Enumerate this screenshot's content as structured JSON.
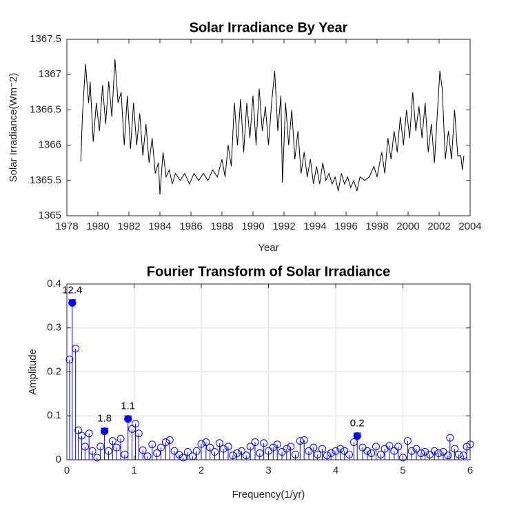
{
  "chart_data": [
    {
      "type": "line",
      "title": "Solar Irradiance By Year",
      "xlabel": "Year",
      "ylabel": "Solar Irradiance(Wm⁻2)",
      "color": "#000000",
      "grid": false,
      "xlim": [
        1978,
        2004
      ],
      "xticks": [
        1978,
        1980,
        1982,
        1984,
        1986,
        1988,
        1990,
        1992,
        1994,
        1996,
        1998,
        2000,
        2002,
        2004
      ],
      "ylim": [
        1365,
        1367.5
      ],
      "yticks": [
        1365,
        1365.5,
        1366,
        1366.5,
        1367,
        1367.5
      ],
      "x": [
        1978.9,
        1979.0,
        1979.2,
        1979.4,
        1979.5,
        1979.7,
        1979.9,
        1980.1,
        1980.3,
        1980.5,
        1980.7,
        1980.9,
        1981.1,
        1981.3,
        1981.5,
        1981.7,
        1981.9,
        1982.1,
        1982.3,
        1982.5,
        1982.7,
        1982.9,
        1983.1,
        1983.3,
        1983.5,
        1983.7,
        1983.9,
        1984.0,
        1984.2,
        1984.4,
        1984.6,
        1984.8,
        1985.0,
        1985.3,
        1985.6,
        1985.9,
        1986.2,
        1986.5,
        1986.8,
        1987.1,
        1987.4,
        1987.7,
        1988.0,
        1988.2,
        1988.4,
        1988.6,
        1988.8,
        1989.0,
        1989.2,
        1989.4,
        1989.6,
        1989.8,
        1990.0,
        1990.2,
        1990.4,
        1990.6,
        1990.8,
        1991.0,
        1991.2,
        1991.4,
        1991.6,
        1991.8,
        1991.9,
        1992.1,
        1992.3,
        1992.5,
        1992.7,
        1992.9,
        1993.1,
        1993.3,
        1993.5,
        1993.7,
        1993.9,
        1994.1,
        1994.3,
        1994.5,
        1994.7,
        1994.9,
        1995.1,
        1995.3,
        1995.5,
        1995.7,
        1995.9,
        1996.1,
        1996.3,
        1996.5,
        1996.7,
        1996.9,
        1997.2,
        1997.5,
        1997.8,
        1998.0,
        1998.3,
        1998.5,
        1998.7,
        1998.9,
        1999.1,
        1999.3,
        1999.5,
        1999.7,
        1999.9,
        2000.1,
        2000.3,
        2000.5,
        2000.7,
        2000.9,
        2001.1,
        2001.3,
        2001.5,
        2001.7,
        2001.9,
        2002.05,
        2002.2,
        2002.4,
        2002.6,
        2002.8,
        2003.0,
        2003.2,
        2003.4,
        2003.5,
        2003.6
      ],
      "values": [
        1365.77,
        1366.4,
        1367.15,
        1366.6,
        1366.9,
        1366.05,
        1366.6,
        1366.2,
        1366.85,
        1366.3,
        1366.9,
        1366.4,
        1367.22,
        1366.6,
        1366.75,
        1366.0,
        1366.7,
        1365.95,
        1366.6,
        1366.0,
        1366.45,
        1365.85,
        1366.3,
        1365.75,
        1366.1,
        1365.6,
        1365.75,
        1365.3,
        1365.9,
        1365.55,
        1365.65,
        1365.45,
        1365.6,
        1365.5,
        1365.6,
        1365.45,
        1365.6,
        1365.5,
        1365.6,
        1365.5,
        1365.65,
        1365.55,
        1365.8,
        1365.55,
        1366.0,
        1365.7,
        1366.6,
        1366.0,
        1366.65,
        1365.9,
        1366.6,
        1366.1,
        1366.7,
        1366.0,
        1366.8,
        1366.2,
        1366.55,
        1366.0,
        1366.6,
        1367.05,
        1366.2,
        1366.7,
        1365.47,
        1366.6,
        1366.0,
        1366.5,
        1365.8,
        1366.2,
        1365.6,
        1365.9,
        1365.55,
        1365.8,
        1365.45,
        1365.7,
        1365.45,
        1365.75,
        1365.5,
        1365.6,
        1365.45,
        1365.55,
        1365.35,
        1365.6,
        1365.45,
        1365.55,
        1365.4,
        1365.5,
        1365.35,
        1365.55,
        1365.5,
        1365.55,
        1365.7,
        1365.55,
        1365.9,
        1365.6,
        1366.1,
        1365.8,
        1366.2,
        1365.9,
        1366.4,
        1366.0,
        1366.5,
        1366.1,
        1366.75,
        1366.2,
        1366.55,
        1366.1,
        1366.6,
        1365.9,
        1366.3,
        1365.75,
        1366.5,
        1367.05,
        1366.8,
        1365.8,
        1366.2,
        1365.8,
        1366.5,
        1365.85,
        1365.85,
        1365.65,
        1365.85
      ]
    },
    {
      "type": "stem",
      "title": "Fourier Transform of Solar Irradiance",
      "xlabel": "Frequency(1/yr)",
      "ylabel": "Amplitude",
      "color": "#0000ff",
      "grid": true,
      "xlim": [
        0,
        6
      ],
      "xticks": [
        0,
        1,
        2,
        3,
        4,
        5,
        6
      ],
      "ylim": [
        0,
        0.4
      ],
      "yticks": [
        0,
        0.1,
        0.2,
        0.3,
        0.4
      ],
      "x": [
        0.04,
        0.08,
        0.13,
        0.17,
        0.22,
        0.27,
        0.33,
        0.38,
        0.45,
        0.5,
        0.56,
        0.62,
        0.68,
        0.74,
        0.8,
        0.86,
        0.91,
        0.97,
        1.02,
        1.07,
        1.13,
        1.2,
        1.27,
        1.34,
        1.4,
        1.47,
        1.53,
        1.6,
        1.67,
        1.73,
        1.8,
        1.87,
        1.93,
        2.0,
        2.07,
        2.13,
        2.2,
        2.27,
        2.33,
        2.4,
        2.47,
        2.53,
        2.6,
        2.67,
        2.73,
        2.8,
        2.87,
        2.93,
        3.0,
        3.07,
        3.13,
        3.2,
        3.27,
        3.33,
        3.4,
        3.47,
        3.53,
        3.6,
        3.67,
        3.73,
        3.8,
        3.87,
        3.93,
        4.0,
        4.07,
        4.13,
        4.2,
        4.27,
        4.32,
        4.4,
        4.47,
        4.53,
        4.6,
        4.67,
        4.73,
        4.8,
        4.87,
        4.93,
        5.0,
        5.07,
        5.13,
        5.2,
        5.27,
        5.33,
        5.4,
        5.47,
        5.53,
        5.6,
        5.67,
        5.7,
        5.77,
        5.83,
        5.9,
        5.95,
        6.0
      ],
      "values": [
        0.228,
        0.357,
        0.253,
        0.067,
        0.055,
        0.03,
        0.06,
        0.02,
        0.005,
        0.03,
        0.065,
        0.02,
        0.043,
        0.028,
        0.048,
        0.012,
        0.093,
        0.07,
        0.082,
        0.06,
        0.022,
        0.008,
        0.035,
        0.015,
        0.028,
        0.04,
        0.045,
        0.02,
        0.012,
        0.005,
        0.018,
        0.008,
        0.02,
        0.036,
        0.04,
        0.028,
        0.018,
        0.038,
        0.025,
        0.03,
        0.01,
        0.015,
        0.02,
        0.01,
        0.03,
        0.04,
        0.015,
        0.038,
        0.02,
        0.028,
        0.035,
        0.018,
        0.025,
        0.03,
        0.012,
        0.043,
        0.045,
        0.02,
        0.028,
        0.012,
        0.025,
        0.01,
        0.015,
        0.02,
        0.025,
        0.02,
        0.012,
        0.04,
        0.054,
        0.028,
        0.02,
        0.015,
        0.03,
        0.012,
        0.025,
        0.032,
        0.02,
        0.03,
        0.005,
        0.043,
        0.02,
        0.025,
        0.015,
        0.018,
        0.012,
        0.02,
        0.015,
        0.018,
        0.01,
        0.05,
        0.025,
        0.012,
        0.01,
        0.03,
        0.035
      ],
      "annotations": [
        {
          "x": 0.08,
          "y": 0.357,
          "text": "12.4"
        },
        {
          "x": 0.56,
          "y": 0.065,
          "text": "1.8"
        },
        {
          "x": 0.91,
          "y": 0.093,
          "text": "1.1"
        },
        {
          "x": 4.32,
          "y": 0.054,
          "text": "0.2"
        }
      ]
    }
  ]
}
